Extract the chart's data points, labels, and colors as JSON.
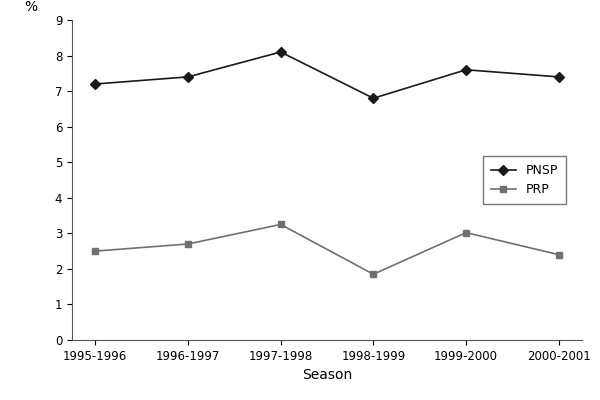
{
  "seasons": [
    "1995-1996",
    "1996-1997",
    "1997-1998",
    "1998-1999",
    "1999-2000",
    "2000-2001"
  ],
  "PNSP": [
    7.2,
    7.4,
    8.1,
    6.8,
    7.6,
    7.4
  ],
  "PRP": [
    2.5,
    2.7,
    3.25,
    1.85,
    3.02,
    2.4
  ],
  "PNSP_color": "#1a1a1a",
  "PRP_color": "#707070",
  "xlabel": "Season",
  "ylabel": "%",
  "ylim": [
    0,
    9
  ],
  "yticks": [
    0,
    1,
    2,
    3,
    4,
    5,
    6,
    7,
    8,
    9
  ],
  "legend_labels": [
    "PNSP",
    "PRP"
  ],
  "background_color": "#ffffff",
  "title": "",
  "figsize": [
    6.0,
    4.0
  ],
  "dpi": 100
}
